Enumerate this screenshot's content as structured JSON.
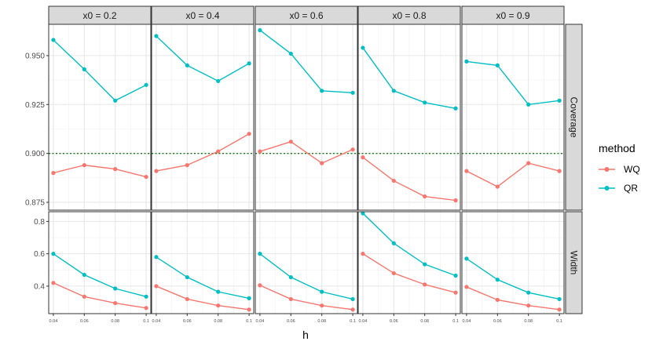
{
  "chart_data": {
    "type": "line",
    "facet_columns": [
      "x0 = 0.2",
      "x0 = 0.4",
      "x0 = 0.6",
      "x0 = 0.8",
      "x0 = 0.9"
    ],
    "facet_rows": [
      "Coverage",
      "Width"
    ],
    "x": [
      0.04,
      0.06,
      0.08,
      0.1
    ],
    "x_tick_labels": [
      "0.04",
      "0.06",
      "0.08",
      "0.1"
    ],
    "xlabel": "h",
    "ylabel": "",
    "rows": [
      {
        "name": "Coverage",
        "ylim": [
          0.871,
          0.966
        ],
        "y_ticks": [
          0.875,
          0.9,
          0.925,
          0.95
        ],
        "y_tick_labels": [
          "0.875",
          "0.900",
          "0.925",
          "0.950"
        ],
        "reference_line": 0.9,
        "series": [
          {
            "name": "WQ",
            "panels": [
              [
                0.89,
                0.894,
                0.892,
                0.888
              ],
              [
                0.891,
                0.894,
                0.901,
                0.91
              ],
              [
                0.901,
                0.906,
                0.895,
                0.902
              ],
              [
                0.898,
                0.886,
                0.878,
                0.876
              ],
              [
                0.891,
                0.883,
                0.895,
                0.891
              ]
            ]
          },
          {
            "name": "QR",
            "panels": [
              [
                0.958,
                0.943,
                0.927,
                0.935
              ],
              [
                0.96,
                0.945,
                0.937,
                0.946
              ],
              [
                0.963,
                0.951,
                0.932,
                0.931
              ],
              [
                0.954,
                0.932,
                0.926,
                0.923
              ],
              [
                0.947,
                0.945,
                0.925,
                0.927
              ]
            ]
          }
        ]
      },
      {
        "name": "Width",
        "ylim": [
          0.23,
          0.86
        ],
        "y_ticks": [
          0.4,
          0.6,
          0.8
        ],
        "y_tick_labels": [
          "0.4",
          "0.6",
          "0.8"
        ],
        "series": [
          {
            "name": "WQ",
            "panels": [
              [
                0.42,
                0.335,
                0.295,
                0.265
              ],
              [
                0.4,
                0.32,
                0.28,
                0.255
              ],
              [
                0.405,
                0.32,
                0.28,
                0.255
              ],
              [
                0.6,
                0.48,
                0.41,
                0.36
              ],
              [
                0.395,
                0.315,
                0.28,
                0.255
              ]
            ]
          },
          {
            "name": "QR",
            "panels": [
              [
                0.6,
                0.47,
                0.385,
                0.335
              ],
              [
                0.58,
                0.455,
                0.365,
                0.325
              ],
              [
                0.6,
                0.455,
                0.365,
                0.32
              ],
              [
                0.85,
                0.665,
                0.535,
                0.465
              ],
              [
                0.57,
                0.44,
                0.36,
                0.32
              ]
            ]
          }
        ]
      }
    ],
    "legend": {
      "title": "method",
      "entries": [
        "WQ",
        "QR"
      ],
      "position": "right"
    },
    "colors": {
      "WQ": "#F8766D",
      "QR": "#00BFC4",
      "reference": "#1a7a1a",
      "strip": "#d9d9d9"
    }
  }
}
